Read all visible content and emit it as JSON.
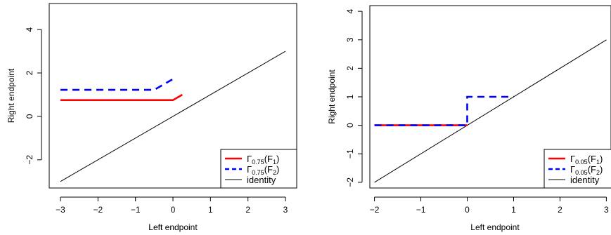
{
  "chart_data": [
    {
      "type": "line",
      "xlabel": "Left endpoint",
      "ylabel": "Right endpoint",
      "xlim": [
        -3.3,
        3.3
      ],
      "ylim": [
        -3.3,
        5.2
      ],
      "xticks": [
        -3,
        -2,
        -1,
        0,
        1,
        2,
        3
      ],
      "yticks": [
        -2,
        0,
        2,
        4
      ],
      "grid": false,
      "legend_position": "bottom-right",
      "series": [
        {
          "name_base": "Γ",
          "name_sub": "0.75",
          "name_arg": "F",
          "name_arg_sub": "1",
          "color": "#ff0000",
          "style": "solid",
          "x": [
            -3,
            0,
            0.25
          ],
          "y": [
            0.75,
            0.75,
            1.0
          ]
        },
        {
          "name_base": "Γ",
          "name_sub": "0.75",
          "name_arg": "F",
          "name_arg_sub": "2",
          "color": "#0000ff",
          "style": "dashed",
          "x": [
            -3,
            -0.5,
            0
          ],
          "y": [
            1.22,
            1.22,
            1.72
          ]
        },
        {
          "name": "identity",
          "color": "#000000",
          "style": "solid-thin",
          "x": [
            -3,
            3
          ],
          "y": [
            -3,
            3
          ]
        }
      ]
    },
    {
      "type": "line",
      "xlabel": "Left endpoint",
      "ylabel": "Right endpoint",
      "xlim": [
        -2.1,
        3.1
      ],
      "ylim": [
        -2.2,
        4.2
      ],
      "xticks": [
        -2,
        -1,
        0,
        1,
        2,
        3
      ],
      "yticks": [
        -2,
        -1,
        0,
        1,
        2,
        3,
        4
      ],
      "grid": false,
      "legend_position": "bottom-right",
      "series": [
        {
          "name_base": "Γ",
          "name_sub": "0.05",
          "name_arg": "F",
          "name_arg_sub": "1",
          "color": "#ff0000",
          "style": "solid",
          "x": [
            -2,
            0
          ],
          "y": [
            0,
            0
          ]
        },
        {
          "name_base": "Γ",
          "name_sub": "0.05",
          "name_arg": "F",
          "name_arg_sub": "2",
          "color": "#0000ff",
          "style": "dashed",
          "x": [
            -2,
            0,
            0,
            1
          ],
          "y": [
            0,
            0,
            1,
            1
          ]
        },
        {
          "name": "identity",
          "color": "#000000",
          "style": "solid-thin",
          "x": [
            -2,
            3
          ],
          "y": [
            -2,
            3
          ]
        }
      ]
    }
  ]
}
